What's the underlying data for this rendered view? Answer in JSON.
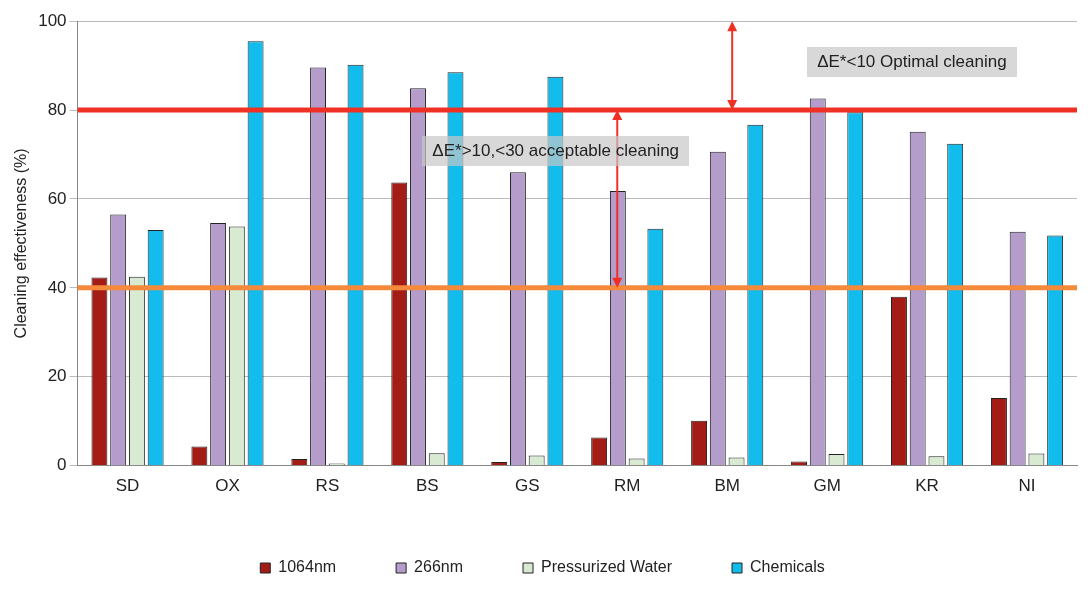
{
  "chart_data": {
    "type": "bar",
    "ylabel": "Cleaning effectiveness (%)",
    "categories": [
      "SD",
      "OX",
      "RS",
      "BS",
      "GS",
      "RM",
      "BM",
      "GM",
      "KR",
      "NI"
    ],
    "series": [
      {
        "name": "1064nm",
        "color": "#a31d16",
        "values": [
          42.3,
          4.3,
          1.5,
          63.7,
          0.8,
          6.3,
          10.1,
          0.9,
          38,
          15.2
        ]
      },
      {
        "name": "266nm",
        "color": "#b59dcb",
        "values": [
          56.5,
          54.6,
          89.6,
          84.9,
          66,
          61.8,
          70.6,
          82.6,
          75.1,
          52.6
        ]
      },
      {
        "name": "Pressurized Water",
        "color": "#d9ead3",
        "values": [
          42.5,
          53.8,
          0.5,
          2.8,
          2.3,
          1.6,
          1.8,
          2.6,
          2.1,
          2.7
        ]
      },
      {
        "name": "Chemicals",
        "color": "#12bdee",
        "values": [
          53,
          95.5,
          90.2,
          88.5,
          87.5,
          53.3,
          76.7,
          79.5,
          72.4,
          51.8
        ]
      }
    ],
    "ylim": [
      0,
      100
    ],
    "yticks": [
      0,
      20,
      40,
      60,
      80,
      100
    ],
    "grid": "y",
    "legend": "bottom",
    "ref_lines": [
      {
        "axis": "y",
        "value": 80,
        "color": "#ee3124"
      },
      {
        "axis": "y",
        "value": 40,
        "color": "#f58a3c"
      }
    ],
    "annotations": [
      "ΔE*<10 Optimal cleaning",
      "ΔE*>10,<30 acceptable cleaning"
    ]
  }
}
